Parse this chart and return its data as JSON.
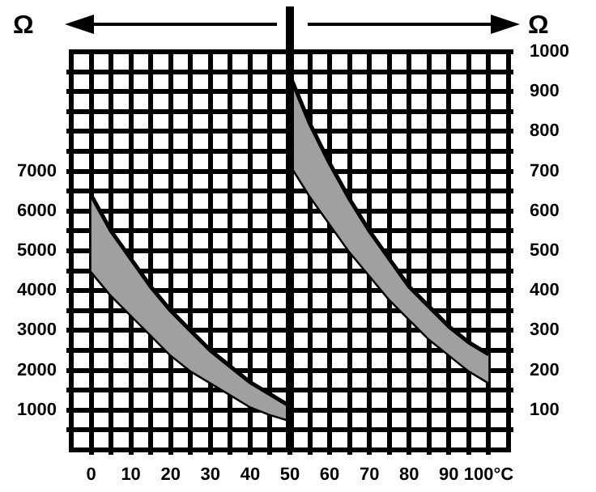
{
  "chart_data": {
    "type": "area",
    "ylabel": "Ω",
    "y2label": "Ω",
    "xlim": [
      -5,
      105
    ],
    "xticks": [
      0,
      {
        "value": 5,
        "label": null
      },
      10,
      {
        "value": 15,
        "label": null
      },
      20,
      {
        "value": 25,
        "label": null
      },
      30,
      {
        "value": 35,
        "label": null
      },
      40,
      {
        "value": 45,
        "label": null
      },
      50,
      {
        "value": 55,
        "label": null
      },
      60,
      {
        "value": 65,
        "label": null
      },
      70,
      {
        "value": 75,
        "label": null
      },
      80,
      {
        "value": 85,
        "label": null
      },
      90,
      {
        "value": 95,
        "label": null
      },
      {
        "value": 100,
        "label": "100°C"
      }
    ],
    "ylim": [
      0,
      10000
    ],
    "yticks": [
      {
        "value": 500,
        "label": null
      },
      1000,
      {
        "value": 1500,
        "label": null
      },
      2000,
      {
        "value": 2500,
        "label": null
      },
      3000,
      {
        "value": 3500,
        "label": null
      },
      4000,
      {
        "value": 4500,
        "label": null
      },
      5000,
      {
        "value": 5500,
        "label": null
      },
      6000,
      {
        "value": 6500,
        "label": null
      },
      7000,
      {
        "value": 7500,
        "label": null
      },
      {
        "value": 8000,
        "label": null
      },
      {
        "value": 8500,
        "label": null
      },
      {
        "value": 9000,
        "label": null
      },
      {
        "value": 9500,
        "label": null
      }
    ],
    "y2lim": [
      0,
      1000
    ],
    "y2ticks": [
      {
        "value": 50,
        "label": null
      },
      100,
      {
        "value": 150,
        "label": null
      },
      200,
      {
        "value": 250,
        "label": null
      },
      300,
      {
        "value": 350,
        "label": null
      },
      400,
      {
        "value": 450,
        "label": null
      },
      500,
      {
        "value": 550,
        "label": null
      },
      600,
      {
        "value": 650,
        "label": null
      },
      700,
      {
        "value": 750,
        "label": null
      },
      800,
      {
        "value": 850,
        "label": null
      },
      900,
      {
        "value": 950,
        "label": null
      },
      1000
    ],
    "grid": true,
    "legend": false,
    "marker": "none",
    "line_style": "solid",
    "ref_lines": [
      {
        "axis": "x",
        "value": 50,
        "color": "#000000"
      }
    ],
    "series": [
      {
        "color": "#a0a0a0",
        "x": [
          0,
          5,
          10,
          15,
          20,
          25,
          30,
          35,
          40,
          45,
          50
        ],
        "values": [
          6400,
          5500,
          4800,
          4100,
          3500,
          3000,
          2500,
          2100,
          1700,
          1400,
          1100
        ]
      },
      {
        "type": "line",
        "color": "#000000",
        "x": [
          0,
          5,
          10,
          15,
          20,
          25,
          30,
          35,
          40,
          45,
          50
        ],
        "values": [
          4500,
          3900,
          3400,
          2900,
          2400,
          2000,
          1700,
          1400,
          1100,
          900,
          750
        ]
      },
      {
        "axis": "y2",
        "color": "#a0a0a0",
        "x": [
          50,
          55,
          60,
          65,
          70,
          75,
          80,
          85,
          90,
          95,
          100
        ],
        "values": [
          940,
          820,
          720,
          630,
          550,
          480,
          410,
          360,
          310,
          270,
          240
        ]
      },
      {
        "type": "line",
        "axis": "y2",
        "color": "#000000",
        "x": [
          50,
          55,
          60,
          65,
          70,
          75,
          80,
          85,
          90,
          95,
          100
        ],
        "values": [
          720,
          640,
          570,
          500,
          440,
          380,
          330,
          280,
          240,
          200,
          170
        ]
      }
    ]
  }
}
